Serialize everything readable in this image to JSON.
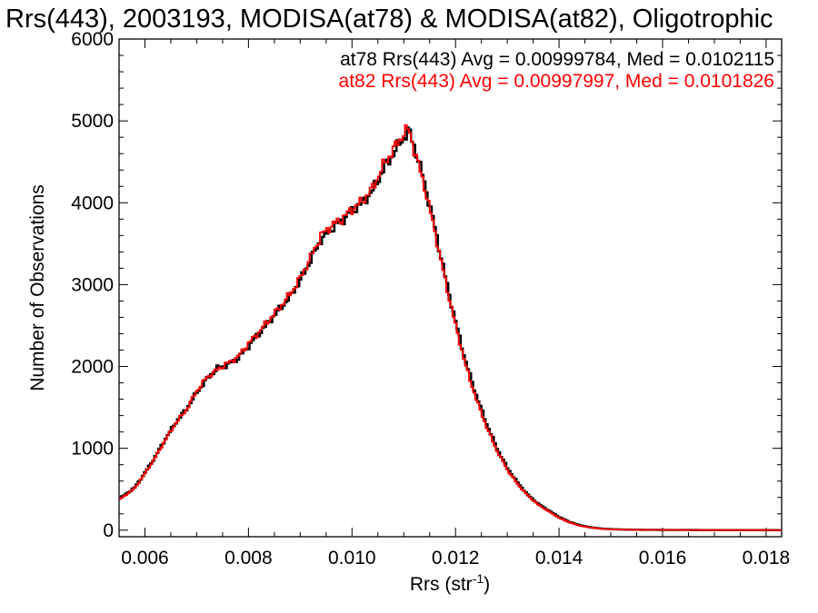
{
  "chart_data": {
    "type": "line",
    "title": "Rrs(443), 2003193, MODISA(at78) & MODISA(at82), Oligotrophic",
    "xlabel": "Rrs (str",
    "xlabel_sup": "-1",
    "xlabel_close": ")",
    "ylabel": "Number of Observations",
    "xlim": [
      0.0055,
      0.0183
    ],
    "ylim": [
      -80,
      6000
    ],
    "xticks": [
      0.006,
      0.008,
      0.01,
      0.012,
      0.014,
      0.016,
      0.018
    ],
    "xtick_labels": [
      "0.006",
      "0.008",
      "0.010",
      "0.012",
      "0.014",
      "0.016",
      "0.018"
    ],
    "yticks": [
      0,
      1000,
      2000,
      3000,
      4000,
      5000,
      6000
    ],
    "ytick_labels": [
      "0",
      "1000",
      "2000",
      "3000",
      "4000",
      "5000",
      "6000"
    ],
    "grid": false,
    "annotations": [
      "at78 Rrs(443) Avg = 0.00999784, Med = 0.0102115",
      "at82 Rrs(443) Avg = 0.00997997, Med = 0.0101826"
    ],
    "x": [
      0.0055,
      0.0058,
      0.006,
      0.0062,
      0.0064,
      0.0066,
      0.0068,
      0.007,
      0.0072,
      0.0074,
      0.0076,
      0.0078,
      0.008,
      0.0082,
      0.0084,
      0.0086,
      0.0088,
      0.009,
      0.0092,
      0.0094,
      0.0096,
      0.0098,
      0.01,
      0.0102,
      0.0104,
      0.0106,
      0.0108,
      0.011,
      0.0111,
      0.0112,
      0.0114,
      0.0116,
      0.0118,
      0.012,
      0.0122,
      0.0124,
      0.0126,
      0.0128,
      0.013,
      0.0132,
      0.0134,
      0.0136,
      0.0138,
      0.014,
      0.0142,
      0.0144,
      0.0146,
      0.0148,
      0.015,
      0.0152,
      0.0155,
      0.016,
      0.0165,
      0.017,
      0.0175,
      0.018,
      0.0183
    ],
    "series": [
      {
        "name": "at78",
        "color": "#000000",
        "values": [
          380,
          520,
          700,
          900,
          1120,
          1320,
          1480,
          1680,
          1850,
          1980,
          2020,
          2100,
          2250,
          2400,
          2550,
          2700,
          2850,
          3050,
          3300,
          3550,
          3680,
          3780,
          3900,
          4000,
          4150,
          4400,
          4600,
          4800,
          4880,
          4700,
          4250,
          3700,
          3100,
          2550,
          2050,
          1650,
          1300,
          1000,
          760,
          580,
          430,
          320,
          240,
          160,
          100,
          60,
          35,
          20,
          12,
          8,
          5,
          3,
          2,
          1,
          1,
          1,
          0
        ]
      },
      {
        "name": "at82",
        "color": "#ff0000",
        "values": [
          370,
          510,
          690,
          890,
          1110,
          1310,
          1470,
          1700,
          1870,
          1960,
          2040,
          2120,
          2280,
          2420,
          2570,
          2720,
          2880,
          3080,
          3330,
          3600,
          3720,
          3800,
          3920,
          4020,
          4180,
          4450,
          4650,
          4850,
          4900,
          4650,
          4200,
          3650,
          3050,
          2500,
          2000,
          1600,
          1260,
          970,
          740,
          560,
          420,
          310,
          230,
          150,
          95,
          55,
          32,
          18,
          10,
          7,
          4,
          3,
          2,
          1,
          1,
          1,
          0
        ]
      }
    ]
  }
}
